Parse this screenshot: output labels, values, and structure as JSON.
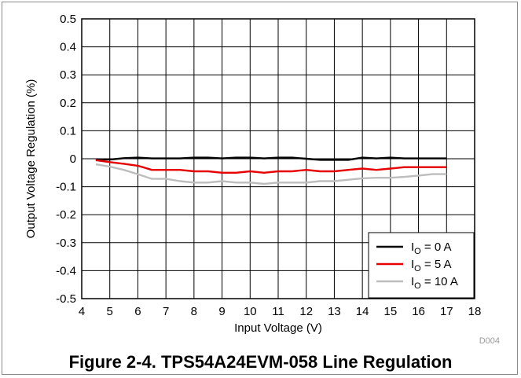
{
  "chart_data": {
    "type": "line",
    "xlabel": "Input Voltage (V)",
    "ylabel": "Output Voltage Regulation (%)",
    "xlim": [
      4,
      18
    ],
    "ylim": [
      -0.5,
      0.5
    ],
    "x_ticks": [
      "4",
      "5",
      "6",
      "7",
      "8",
      "9",
      "10",
      "11",
      "12",
      "13",
      "14",
      "15",
      "16",
      "17",
      "18"
    ],
    "y_ticks": [
      "0.5",
      "0.4",
      "0.3",
      "0.2",
      "0.1",
      "0",
      "-0.1",
      "-0.2",
      "-0.3",
      "-0.4",
      "-0.5"
    ],
    "grid": true,
    "legend_position": "bottom-right",
    "series": [
      {
        "name": "I_O = 0 A",
        "legend_main": "I",
        "legend_sub": "O",
        "legend_rest": " = 0 A",
        "color": "#000000",
        "x": [
          4.5,
          5,
          5.5,
          6,
          6.5,
          7,
          7.5,
          8,
          8.5,
          9,
          9.5,
          10,
          10.5,
          11,
          11.5,
          12,
          12.5,
          13,
          13.5,
          14,
          14.5,
          15,
          15.5,
          16,
          16.5,
          17
        ],
        "y": [
          -0.002,
          -0.003,
          0.002,
          0.004,
          0.001,
          0.001,
          0.001,
          0.004,
          0.004,
          0.001,
          0.004,
          0.004,
          0.001,
          0.004,
          0.004,
          0.0,
          -0.004,
          -0.004,
          -0.004,
          0.004,
          0.001,
          0.004,
          0.001,
          0.001,
          0.001,
          0.001
        ]
      },
      {
        "name": "I_O = 5 A",
        "legend_main": "I",
        "legend_sub": "O",
        "legend_rest": " = 5 A",
        "color": "#e60000",
        "x": [
          4.5,
          5,
          5.5,
          6,
          6.5,
          7,
          7.5,
          8,
          8.5,
          9,
          9.5,
          10,
          10.5,
          11,
          11.5,
          12,
          12.5,
          13,
          13.5,
          14,
          14.5,
          15,
          15.5,
          16,
          16.5,
          17
        ],
        "y": [
          -0.005,
          -0.012,
          -0.018,
          -0.025,
          -0.04,
          -0.04,
          -0.04,
          -0.045,
          -0.045,
          -0.05,
          -0.05,
          -0.045,
          -0.05,
          -0.045,
          -0.045,
          -0.04,
          -0.045,
          -0.045,
          -0.04,
          -0.035,
          -0.04,
          -0.035,
          -0.03,
          -0.03,
          -0.03,
          -0.03
        ]
      },
      {
        "name": "I_O = 10 A",
        "legend_main": "I",
        "legend_sub": "O",
        "legend_rest": " = 10 A",
        "color": "#bdbdbd",
        "x": [
          4.5,
          5,
          5.5,
          6,
          6.5,
          7,
          7.5,
          8,
          8.5,
          9,
          9.5,
          10,
          10.5,
          11,
          11.5,
          12,
          12.5,
          13,
          13.5,
          14,
          14.5,
          15,
          15.5,
          16,
          16.5,
          17
        ],
        "y": [
          -0.02,
          -0.028,
          -0.04,
          -0.055,
          -0.072,
          -0.072,
          -0.08,
          -0.085,
          -0.085,
          -0.08,
          -0.085,
          -0.085,
          -0.09,
          -0.085,
          -0.085,
          -0.085,
          -0.08,
          -0.08,
          -0.075,
          -0.07,
          -0.068,
          -0.068,
          -0.065,
          -0.06,
          -0.055,
          -0.055
        ]
      }
    ],
    "figure_code": "D004"
  },
  "caption": "Figure 2-4. TPS54A24EVM-058 Line Regulation"
}
